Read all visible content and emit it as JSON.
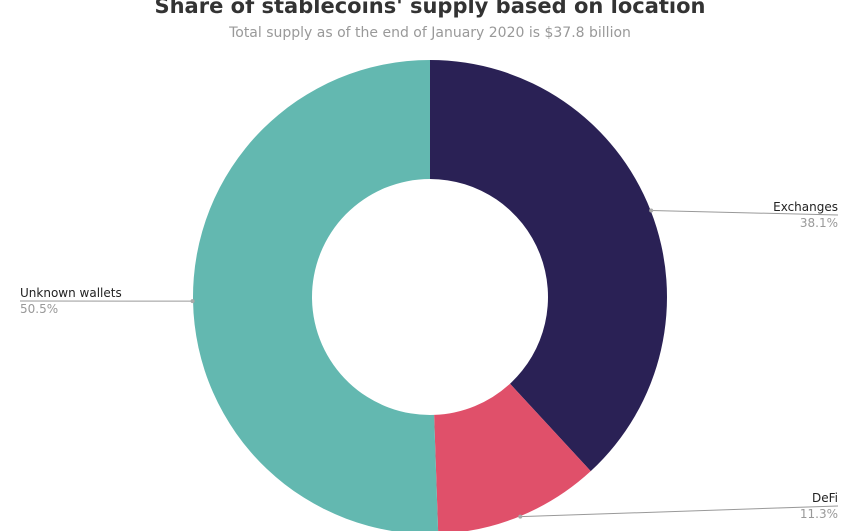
{
  "chart_data": {
    "type": "pie",
    "variant": "donut",
    "title": "Share of stablecoins' supply based on location",
    "subtitle": "Total supply as of the end of January 2020 is $37.8 billion",
    "slices": [
      {
        "label": "Exchanges",
        "value": 38.1,
        "value_label": "38.1%",
        "color": "#2a2155"
      },
      {
        "label": "DeFi",
        "value": 11.3,
        "value_label": "11.3%",
        "color": "#e0506a"
      },
      {
        "label": "Unknown wallets",
        "value": 50.5,
        "value_label": "50.5%",
        "color": "#63b8b0"
      }
    ],
    "start_angle": "top",
    "direction": "clockwise"
  }
}
